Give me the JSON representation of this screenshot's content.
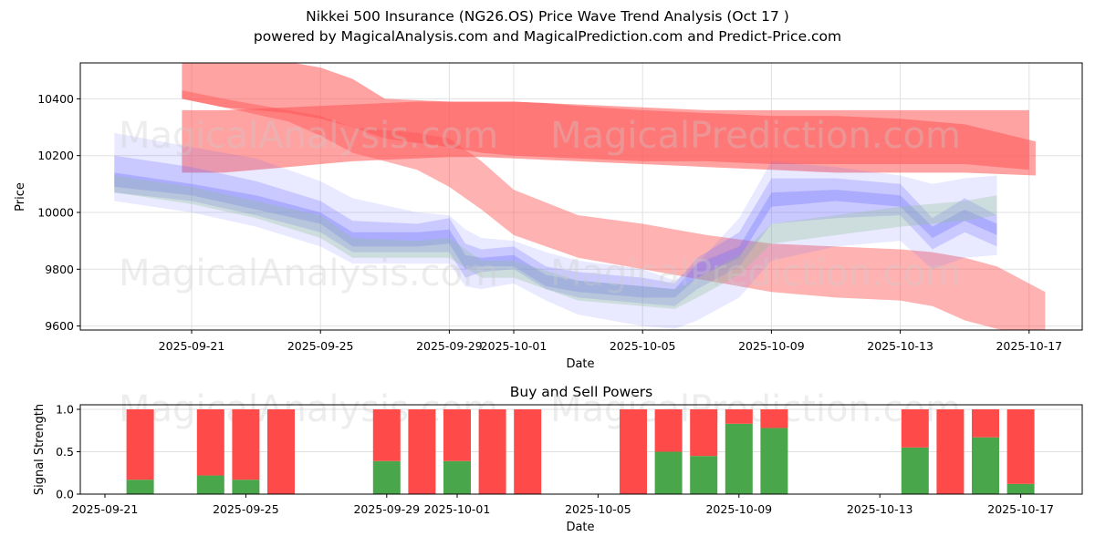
{
  "header": {
    "title": "Nikkei 500 Insurance (NG26.OS) Price Wave Trend Analysis (Oct 17 )",
    "subtitle": "powered by MagicalAnalysis.com and MagicalPrediction.com and Predict-Price.com"
  },
  "watermarks": [
    "MagicalAnalysis.com",
    "MagicalPrediction.com"
  ],
  "colors": {
    "sell": "#ff4a4a",
    "buy": "#4aa64a",
    "wave_red": "#ff5555",
    "wave_blue": "#6a6aff",
    "wave_green": "#8fbf8f",
    "grid": "#e0e0e0"
  },
  "chart_data": [
    {
      "type": "area",
      "title": "",
      "xlabel": "Date",
      "ylabel": "Price",
      "ylim": [
        9590,
        10530
      ],
      "xlim": [
        "2025-09-18",
        "2025-10-18"
      ],
      "grid": true,
      "yticks": [
        9600,
        9800,
        10000,
        10200,
        10400
      ],
      "xticks": [
        "2025-09-21",
        "2025-09-25",
        "2025-09-29",
        "2025-10-01",
        "2025-10-05",
        "2025-10-09",
        "2025-10-13",
        "2025-10-17"
      ],
      "series": [
        {
          "name": "red-wave-top",
          "color": "red",
          "opacity": 0.55,
          "x": [
            -0.3,
            1,
            3,
            4,
            5,
            6,
            8,
            9,
            10,
            12,
            14,
            16,
            18,
            20,
            22,
            24,
            26
          ],
          "upper": [
            10530,
            10530,
            10530,
            10510,
            10470,
            10400,
            10390,
            10390,
            10390,
            10380,
            10370,
            10360,
            10360,
            10360,
            10360,
            10360,
            10360
          ],
          "lower": [
            10400,
            10370,
            10350,
            10330,
            10300,
            10260,
            10230,
            10210,
            10200,
            10190,
            10180,
            10180,
            10170,
            10170,
            10170,
            10170,
            10150
          ]
        },
        {
          "name": "red-wave-main",
          "color": "red",
          "opacity": 0.55,
          "x": [
            -0.3,
            1,
            3,
            5,
            7,
            8,
            9,
            10,
            11,
            12,
            14,
            16,
            18,
            20,
            22,
            24,
            26.2
          ],
          "upper": [
            10360,
            10360,
            10370,
            10380,
            10390,
            10390,
            10390,
            10390,
            10385,
            10375,
            10360,
            10350,
            10340,
            10340,
            10330,
            10310,
            10250
          ],
          "lower": [
            10140,
            10140,
            10160,
            10180,
            10190,
            10195,
            10195,
            10190,
            10185,
            10180,
            10170,
            10160,
            10150,
            10140,
            10140,
            10140,
            10130
          ]
        },
        {
          "name": "red-wave-falling",
          "color": "red",
          "opacity": 0.45,
          "x": [
            -0.3,
            1,
            3,
            4,
            5,
            6,
            7,
            8,
            9,
            10,
            12,
            14,
            16,
            18,
            20,
            22,
            23,
            24,
            25,
            26.5
          ],
          "upper": [
            10430,
            10400,
            10360,
            10340,
            10300,
            10290,
            10280,
            10260,
            10180,
            10080,
            9990,
            9960,
            9920,
            9890,
            9880,
            9870,
            9860,
            9840,
            9810,
            9720
          ],
          "lower": [
            10400,
            10370,
            10320,
            10270,
            10210,
            10180,
            10150,
            10090,
            10010,
            9920,
            9840,
            9800,
            9760,
            9720,
            9700,
            9690,
            9670,
            9620,
            9590,
            9560
          ]
        },
        {
          "name": "blue-wave-outer",
          "color": "blue",
          "opacity": 0.15,
          "x": [
            -2.4,
            0,
            2,
            4,
            5,
            7,
            8,
            8.5,
            9,
            10,
            11,
            12,
            14,
            15,
            15.7,
            17,
            18,
            20,
            22,
            23,
            24,
            25
          ],
          "upper": [
            10280,
            10230,
            10190,
            10110,
            10050,
            10000,
            9990,
            9940,
            9910,
            9900,
            9860,
            9830,
            9800,
            9760,
            9820,
            9980,
            10180,
            10160,
            10130,
            10100,
            10120,
            10130
          ],
          "lower": [
            10040,
            10000,
            9950,
            9880,
            9820,
            9820,
            9820,
            9740,
            9730,
            9750,
            9690,
            9640,
            9600,
            9590,
            9620,
            9700,
            9830,
            9880,
            9900,
            9800,
            9840,
            9850
          ]
        },
        {
          "name": "blue-wave-mid",
          "color": "blue",
          "opacity": 0.25,
          "x": [
            -2.4,
            0,
            2,
            4,
            5,
            7,
            8,
            8.5,
            9,
            10,
            11,
            12,
            14,
            15,
            15.7,
            17,
            18,
            20,
            22,
            23,
            24,
            25
          ],
          "upper": [
            10200,
            10160,
            10110,
            10040,
            9970,
            9960,
            9980,
            9890,
            9870,
            9880,
            9810,
            9790,
            9770,
            9750,
            9840,
            9930,
            10120,
            10120,
            10100,
            9980,
            10050,
            9990
          ],
          "lower": [
            10070,
            10040,
            9990,
            9930,
            9860,
            9860,
            9860,
            9770,
            9790,
            9800,
            9730,
            9700,
            9680,
            9670,
            9730,
            9810,
            9960,
            9980,
            9990,
            9870,
            9930,
            9880
          ]
        },
        {
          "name": "blue-wave-core",
          "color": "blue",
          "opacity": 0.3,
          "x": [
            -2.4,
            0,
            2,
            4,
            5,
            7,
            8,
            8.5,
            9,
            10,
            11,
            12,
            14,
            15,
            15.7,
            17,
            18,
            20,
            22,
            23,
            24,
            25
          ],
          "upper": [
            10140,
            10100,
            10060,
            10000,
            9930,
            9930,
            9940,
            9850,
            9840,
            9850,
            9780,
            9760,
            9740,
            9730,
            9820,
            9880,
            10070,
            10080,
            10060,
            9950,
            10010,
            9960
          ],
          "lower": [
            10090,
            10060,
            10010,
            9960,
            9880,
            9880,
            9890,
            9800,
            9810,
            9810,
            9740,
            9720,
            9700,
            9700,
            9770,
            9840,
            10020,
            10040,
            10020,
            9910,
            9970,
            9920
          ]
        },
        {
          "name": "green-wave",
          "color": "green",
          "opacity": 0.3,
          "x": [
            -2.4,
            0,
            2,
            4,
            5,
            7,
            8,
            9,
            10,
            12,
            14,
            15,
            15.7,
            17,
            18,
            20,
            22,
            24,
            25
          ],
          "upper": [
            10130,
            10090,
            10040,
            9990,
            9910,
            9900,
            9910,
            9830,
            9830,
            9760,
            9740,
            9730,
            9770,
            9850,
            9960,
            9990,
            10020,
            10040,
            10060
          ],
          "lower": [
            10070,
            10030,
            9980,
            9910,
            9840,
            9840,
            9840,
            9770,
            9770,
            9690,
            9670,
            9660,
            9700,
            9780,
            9890,
            9920,
            9950,
            9970,
            9990
          ]
        }
      ]
    },
    {
      "type": "bar",
      "title": "Buy and Sell Powers",
      "xlabel": "Date",
      "ylabel": "Signal Strength",
      "ylim": [
        0,
        1.05
      ],
      "grid": true,
      "yticks": [
        "0.0",
        "0.5",
        "1.0"
      ],
      "xticks": [
        "2025-09-21",
        "2025-09-25",
        "2025-09-29",
        "2025-10-01",
        "2025-10-05",
        "2025-10-09",
        "2025-10-13",
        "2025-10-17"
      ],
      "categories": [
        "2025-09-22",
        "2025-09-24",
        "2025-09-25",
        "2025-09-26",
        "2025-09-29",
        "2025-09-30",
        "2025-10-01",
        "2025-10-02",
        "2025-10-03",
        "2025-10-06",
        "2025-10-07",
        "2025-10-08",
        "2025-10-09",
        "2025-10-10",
        "2025-10-14",
        "2025-10-15",
        "2025-10-16",
        "2025-10-17"
      ],
      "series": [
        {
          "name": "Buy",
          "values": [
            0.17,
            0.22,
            0.17,
            0.0,
            0.39,
            0.0,
            0.39,
            0.0,
            0.0,
            0.0,
            0.5,
            0.45,
            0.83,
            0.78,
            0.55,
            0.0,
            0.67,
            0.12
          ]
        },
        {
          "name": "Sell",
          "values": [
            0.83,
            0.78,
            0.83,
            1.0,
            0.61,
            1.0,
            0.61,
            1.0,
            1.0,
            1.0,
            0.5,
            0.55,
            0.17,
            0.22,
            0.45,
            1.0,
            0.33,
            0.88
          ]
        }
      ]
    }
  ]
}
